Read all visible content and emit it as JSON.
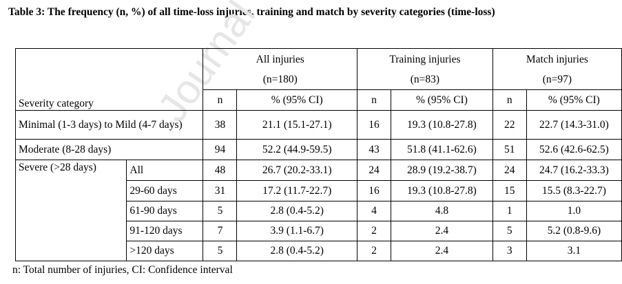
{
  "title": "Table 3: The frequency (n, %) of all time-loss injuries, training and match by severity categories (time-loss)",
  "watermark": "Journal",
  "header": {
    "row_label": "Severity category",
    "groups": [
      {
        "name": "All injuries",
        "count": "(n=180)"
      },
      {
        "name": "Training injuries",
        "count": "(n=83)"
      },
      {
        "name": "Match injuries",
        "count": "(n=97)"
      }
    ],
    "n_label": "n",
    "pct_label": "% (95% CI)"
  },
  "rows": [
    {
      "label": "Minimal (1-3 days) to Mild (4-7 days)",
      "all_n": "38",
      "all_pct": "21.1 (15.1-27.1)",
      "tr_n": "16",
      "tr_pct": "19.3 (10.8-27.8)",
      "ma_n": "22",
      "ma_pct": "22.7 (14.3-31.0)"
    },
    {
      "label": "Moderate (8-28 days)",
      "all_n": "94",
      "all_pct": "52.2 (44.9-59.5)",
      "tr_n": "43",
      "tr_pct": "51.8 (41.1-62.6)",
      "ma_n": "51",
      "ma_pct": "52.6 (42.6-62.5)"
    }
  ],
  "severe": {
    "label": "Severe (>28 days)",
    "sub": [
      {
        "label": "All",
        "all_n": "48",
        "all_pct": "26.7 (20.2-33.1)",
        "tr_n": "24",
        "tr_pct": "28.9 (19.2-38.7)",
        "ma_n": "24",
        "ma_pct": "24.7 (16.2-33.3)"
      },
      {
        "label": "29-60 days",
        "all_n": "31",
        "all_pct": "17.2 (11.7-22.7)",
        "tr_n": "16",
        "tr_pct": "19.3 (10.8-27.8)",
        "ma_n": "15",
        "ma_pct": "15.5 (8.3-22.7)"
      },
      {
        "label": "61-90 days",
        "all_n": "5",
        "all_pct": "2.8 (0.4-5.2)",
        "tr_n": "4",
        "tr_pct": "4.8",
        "ma_n": "1",
        "ma_pct": "1.0"
      },
      {
        "label": "91-120 days",
        "all_n": "7",
        "all_pct": "3.9 (1.1-6.7)",
        "tr_n": "2",
        "tr_pct": "2.4",
        "ma_n": "5",
        "ma_pct": "5.2 (0.8-9.6)"
      },
      {
        "label": ">120 days",
        "all_n": "5",
        "all_pct": "2.8 (0.4-5.2)",
        "tr_n": "2",
        "tr_pct": "2.4",
        "ma_n": "3",
        "ma_pct": "3.1"
      }
    ]
  },
  "footnote": "n: Total number of injuries, CI: Confidence interval"
}
